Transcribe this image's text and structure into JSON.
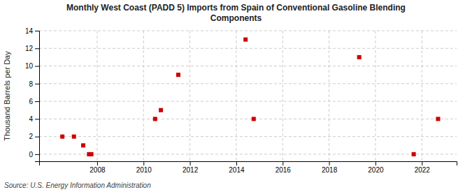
{
  "chart_data": {
    "type": "scatter",
    "title": "Monthly West Coast (PADD 5) Imports from Spain of Conventional Gasoline Blending\nComponents",
    "y_label": "Thousand Barrels per Day",
    "annotations": [
      "Source: U.S. Energy Information Administration"
    ],
    "x": [
      2006.5,
      2007.0,
      2007.4,
      2007.65,
      2007.75,
      2010.5,
      2010.75,
      2011.5,
      2014.4,
      2014.75,
      2019.3,
      2021.65,
      2022.7
    ],
    "values": [
      2,
      2,
      1,
      0,
      0,
      4,
      5,
      9,
      13,
      4,
      11,
      0,
      4
    ],
    "color": "#cc0000",
    "marker": "square",
    "xlim": [
      2005.5,
      2023.5
    ],
    "ylim": [
      -0.8,
      14
    ],
    "xticks": [
      2008,
      2010,
      2012,
      2014,
      2016,
      2018,
      2020,
      2022
    ],
    "yticks": [
      0,
      2,
      4,
      6,
      8,
      10,
      12,
      14
    ],
    "grid": true
  }
}
